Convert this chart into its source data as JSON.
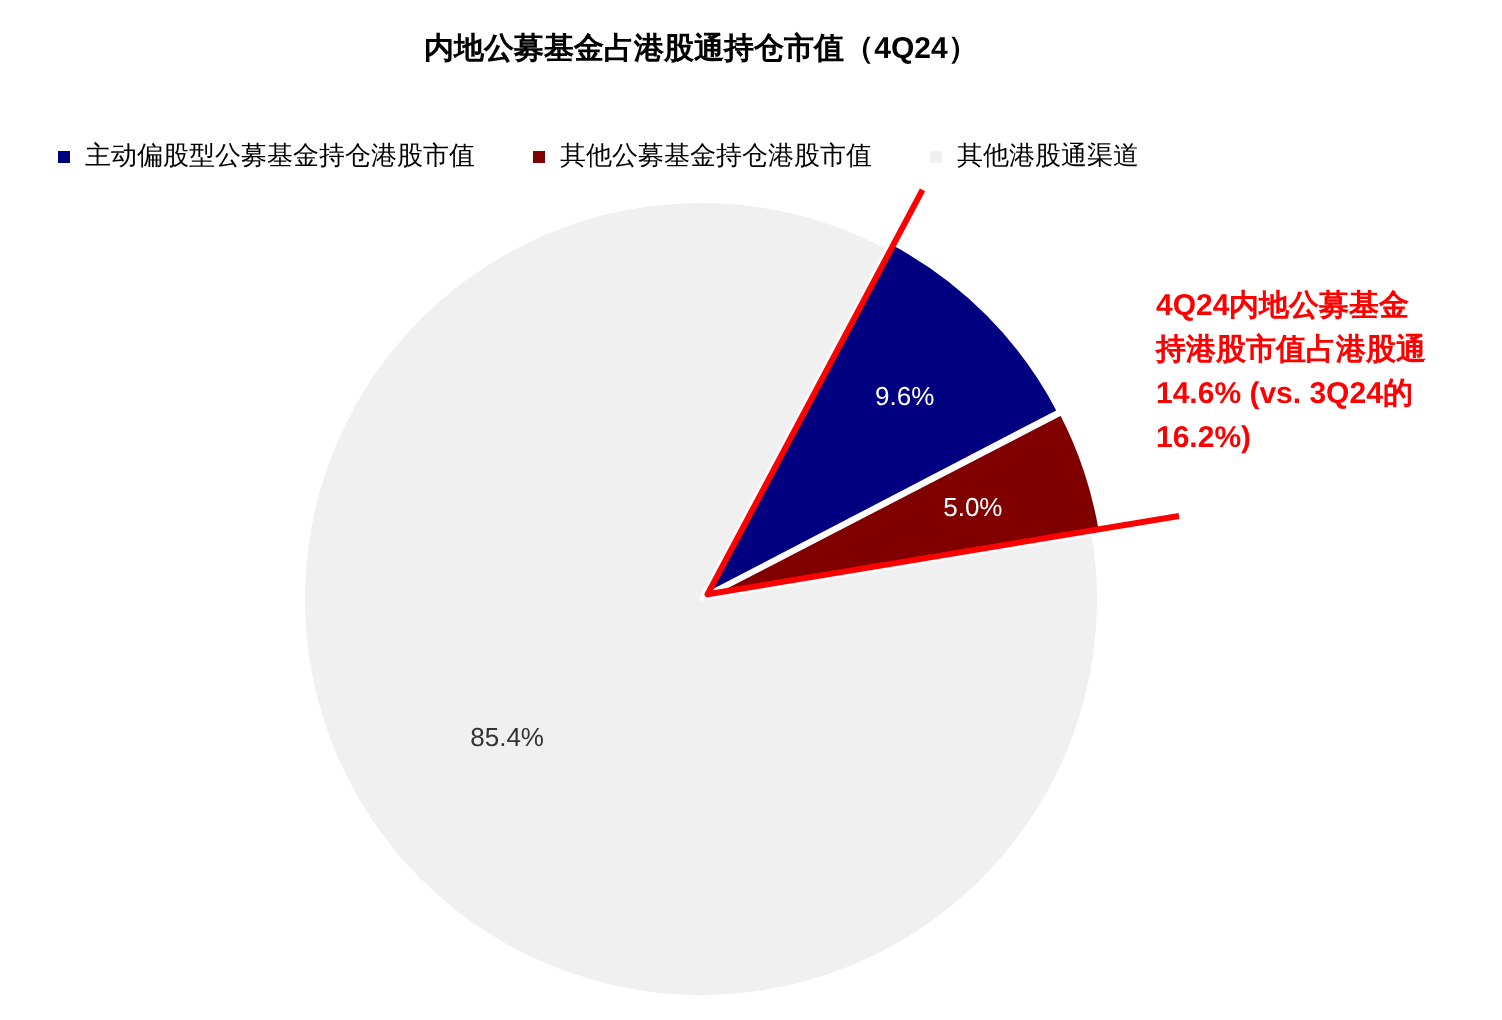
{
  "chart_data": {
    "type": "pie",
    "title": "内地公募基金占港股通持仓市值（4Q24）",
    "categories": [
      "主动偏股型公募基金持仓港股市值",
      "其他公募基金持仓港股市值",
      "其他港股通渠道"
    ],
    "values": [
      9.6,
      5.0,
      85.4
    ],
    "colors": [
      "#000080",
      "#800000",
      "#f0f0f0"
    ],
    "value_labels": [
      "9.6%",
      "5.0%",
      "85.4%"
    ],
    "legend": "top left",
    "annotations": [
      "4Q24内地公募基金持港股市值占港股通14.6% (vs. 3Q24的16.2%)"
    ]
  }
}
